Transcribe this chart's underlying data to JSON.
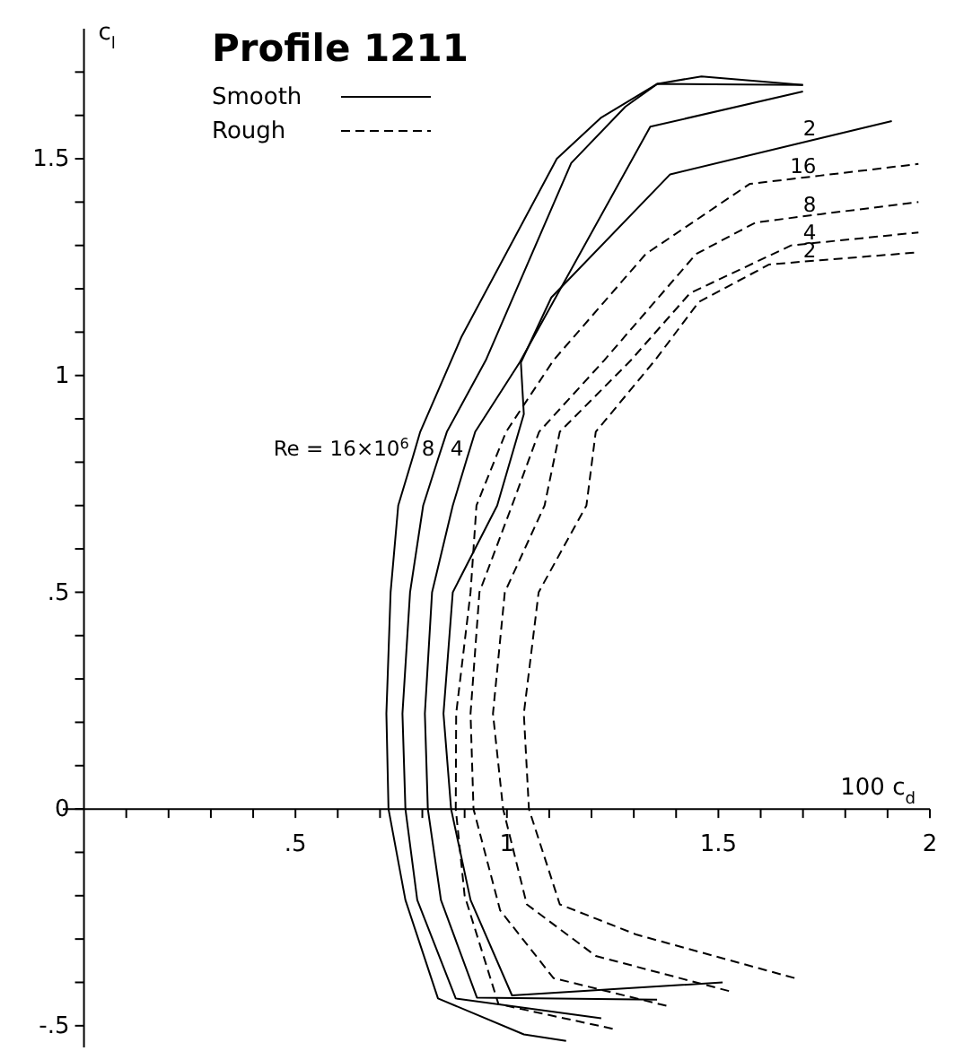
{
  "chart_data": {
    "type": "line",
    "title": "Profile 1211",
    "xlabel": "100 c$_{d}$",
    "ylabel": "c$_{l}$",
    "xlim": [
      -0.05,
      2
    ],
    "ylim": [
      -0.55,
      1.8
    ],
    "xticks": [
      {
        "value": 0.1,
        "label": null
      },
      {
        "value": 0.2,
        "label": null
      },
      {
        "value": 0.3,
        "label": null
      },
      {
        "value": 0.4,
        "label": null
      },
      {
        "value": 0.5,
        "label": ".5"
      },
      {
        "value": 0.6,
        "label": null
      },
      {
        "value": 0.7,
        "label": null
      },
      {
        "value": 0.8,
        "label": null
      },
      {
        "value": 0.9,
        "label": null
      },
      1,
      {
        "value": 1.1,
        "label": null
      },
      {
        "value": 1.2,
        "label": null
      },
      {
        "value": 1.3,
        "label": null
      },
      {
        "value": 1.4,
        "label": null
      },
      1.5,
      {
        "value": 1.6,
        "label": null
      },
      {
        "value": 1.7,
        "label": null
      },
      {
        "value": 1.8,
        "label": null
      },
      {
        "value": 1.9,
        "label": null
      },
      2
    ],
    "yticks": [
      {
        "value": -0.5,
        "label": "-.5"
      },
      {
        "value": -0.4,
        "label": null
      },
      {
        "value": -0.3,
        "label": null
      },
      {
        "value": -0.2,
        "label": null
      },
      {
        "value": -0.1,
        "label": null
      },
      0,
      {
        "value": 0.1,
        "label": null
      },
      {
        "value": 0.2,
        "label": null
      },
      {
        "value": 0.3,
        "label": null
      },
      {
        "value": 0.4,
        "label": null
      },
      {
        "value": 0.5,
        "label": ".5"
      },
      {
        "value": 0.6,
        "label": null
      },
      {
        "value": 0.7,
        "label": null
      },
      {
        "value": 0.8,
        "label": null
      },
      {
        "value": 0.9,
        "label": null
      },
      1,
      {
        "value": 1.1,
        "label": null
      },
      {
        "value": 1.2,
        "label": null
      },
      {
        "value": 1.3,
        "label": null
      },
      {
        "value": 1.4,
        "label": null
      },
      1.5,
      {
        "value": 1.6,
        "label": null
      },
      {
        "value": 1.7,
        "label": null
      }
    ],
    "grid": false,
    "legend": "top left",
    "marker": "none",
    "series": [
      {
        "name": "Smooth",
        "color": "#000000",
        "line_style": "solid",
        "x": [
          1.14,
          1.04,
          0.837,
          0.76,
          0.72,
          0.715,
          0.725,
          0.743,
          0.777,
          0.795,
          0.893,
          1.118,
          1.223,
          1.356,
          1.46,
          1.7
        ],
        "values": [
          -0.535,
          -0.52,
          -0.437,
          -0.21,
          0,
          0.22,
          0.5,
          0.7,
          0.81,
          0.87,
          1.09,
          1.5,
          1.595,
          1.673,
          1.69,
          1.67
        ]
      },
      {
        "color": "#000000",
        "line_style": "solid",
        "x": [
          1.223,
          0.879,
          0.788,
          0.76,
          0.753,
          0.771,
          0.802,
          0.838,
          0.858,
          0.95,
          1.152,
          1.28,
          1.356,
          1.7
        ],
        "values": [
          -0.483,
          -0.437,
          -0.21,
          0,
          0.22,
          0.5,
          0.7,
          0.81,
          0.87,
          1.035,
          1.49,
          1.62,
          1.673,
          1.67
        ]
      },
      {
        "color": "#000000",
        "line_style": "solid",
        "x": [
          1.355,
          0.929,
          0.844,
          0.813,
          0.806,
          0.823,
          0.872,
          0.906,
          0.925,
          1.03,
          1.339,
          1.7
        ],
        "values": [
          -0.44,
          -0.435,
          -0.21,
          0,
          0.22,
          0.5,
          0.7,
          0.81,
          0.87,
          1.03,
          1.574,
          1.655
        ]
      },
      {
        "color": "#000000",
        "line_style": "solid",
        "x": [
          1.51,
          1.012,
          0.914,
          0.868,
          0.85,
          0.872,
          0.977,
          1.04,
          1.033,
          1.105,
          1.386,
          1.74,
          1.91
        ],
        "values": [
          -0.4,
          -0.43,
          -0.21,
          0,
          0.22,
          0.5,
          0.7,
          0.911,
          1.03,
          1.18,
          1.464,
          1.547,
          1.587
        ]
      },
      {
        "name": "Rough",
        "color": "#000000",
        "line_style": "dashed",
        "x": [
          1.25,
          0.98,
          0.9,
          0.879,
          0.88,
          0.914,
          0.928,
          0.998,
          1.11,
          1.328,
          1.574,
          1.74,
          1.973
        ],
        "values": [
          -0.507,
          -0.45,
          -0.2,
          0,
          0.22,
          0.5,
          0.7,
          0.87,
          1.035,
          1.28,
          1.442,
          1.461,
          1.488
        ]
      },
      {
        "color": "#000000",
        "line_style": "dashed",
        "x": [
          1.377,
          1.11,
          0.984,
          0.921,
          0.914,
          0.935,
          1.012,
          1.076,
          1.23,
          1.447,
          1.588,
          1.74,
          1.973
        ],
        "values": [
          -0.454,
          -0.39,
          -0.234,
          0,
          0.22,
          0.5,
          0.7,
          0.87,
          1.035,
          1.28,
          1.353,
          1.372,
          1.4
        ]
      },
      {
        "color": "#000000",
        "line_style": "dashed",
        "x": [
          1.525,
          1.21,
          1.047,
          0.991,
          0.967,
          0.995,
          1.089,
          1.125,
          1.293,
          1.433,
          1.672,
          1.74,
          1.973
        ],
        "values": [
          -0.42,
          -0.339,
          -0.22,
          0,
          0.22,
          0.5,
          0.7,
          0.87,
          1.035,
          1.19,
          1.3,
          1.307,
          1.33
        ]
      },
      {
        "color": "#000000",
        "line_style": "dashed",
        "x": [
          1.68,
          1.307,
          1.125,
          1.052,
          1.04,
          1.075,
          1.188,
          1.21,
          1.35,
          1.454,
          1.62,
          1.74,
          1.973
        ],
        "values": [
          -0.39,
          -0.29,
          -0.22,
          0,
          0.22,
          0.5,
          0.7,
          0.87,
          1.035,
          1.17,
          1.256,
          1.266,
          1.284
        ]
      }
    ],
    "annotations": [
      {
        "text": "Re = 16×10$^{6}$",
        "x": 0.777,
        "y": 0.81
      },
      {
        "text": "8",
        "x": 0.838,
        "y": 0.81
      },
      {
        "text": "4",
        "x": 0.906,
        "y": 0.81
      },
      {
        "text": "2",
        "x": 1.74,
        "y": 1.547
      },
      {
        "text": "16",
        "x": 1.74,
        "y": 1.461
      },
      {
        "text": "8",
        "x": 1.74,
        "y": 1.372
      },
      {
        "text": "4",
        "x": 1.74,
        "y": 1.307
      },
      {
        "text": "2",
        "x": 1.74,
        "y": 1.266
      }
    ]
  }
}
